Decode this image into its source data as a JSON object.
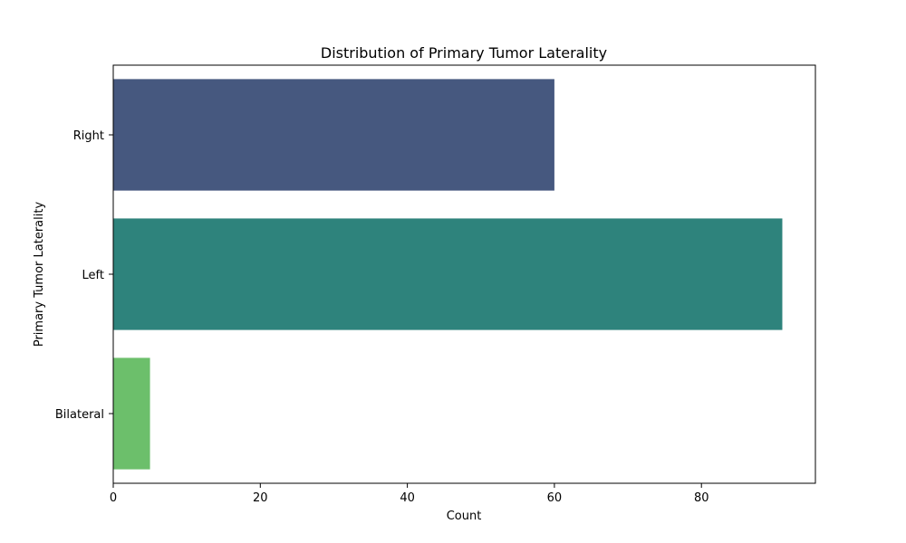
{
  "chart_data": {
    "type": "bar",
    "orientation": "horizontal",
    "title": "Distribution of Primary Tumor Laterality",
    "xlabel": "Count",
    "ylabel": "Primary Tumor Laterality",
    "categories": [
      "Right",
      "Left",
      "Bilateral"
    ],
    "values": [
      60,
      91,
      5
    ],
    "colors": [
      "#46587f",
      "#2e837c",
      "#6cbf6b"
    ],
    "xlim": [
      0,
      95.5
    ],
    "xticks": [
      0,
      20,
      40,
      60,
      80
    ],
    "grid": false,
    "legend": "none"
  }
}
